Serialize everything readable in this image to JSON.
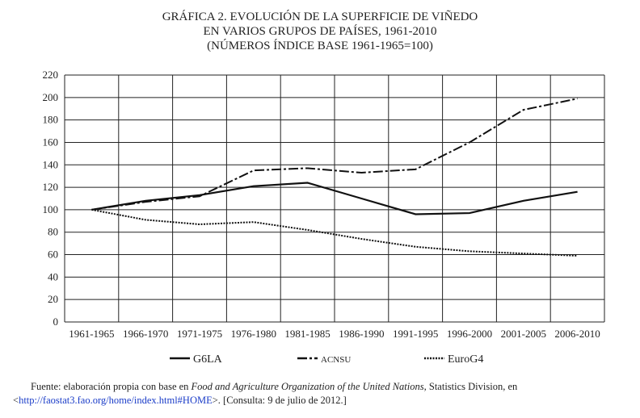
{
  "chart_data": {
    "type": "line",
    "title": [
      "GRÁFICA 2. EVOLUCIÓN DE LA SUPERFICIE DE VIÑEDO",
      "EN VARIOS GRUPOS DE PAÍSES, 1961-2010",
      "(NÚMEROS ÍNDICE BASE 1961-1965=100)"
    ],
    "categories": [
      "1961-1965",
      "1966-1970",
      "1971-1975",
      "1976-1980",
      "1981-1985",
      "1986-1990",
      "1991-1995",
      "1996-2000",
      "2001-2005",
      "2006-2010"
    ],
    "ylim": [
      0,
      220
    ],
    "yticks": [
      0,
      20,
      40,
      60,
      80,
      100,
      120,
      140,
      160,
      180,
      200,
      220
    ],
    "grid": true,
    "legend_placement": "bottom",
    "series": [
      {
        "name": "G6LA",
        "style": "solid",
        "values": [
          100,
          108,
          113,
          121,
          124,
          110,
          96,
          97,
          108,
          116
        ]
      },
      {
        "name": "ACNSU",
        "style": "dashdot",
        "values": [
          100,
          107,
          112,
          135,
          137,
          133,
          136,
          160,
          189,
          199
        ]
      },
      {
        "name": "EuroG4",
        "style": "dotted",
        "values": [
          100,
          91,
          87,
          89,
          82,
          74,
          67,
          63,
          61,
          59
        ]
      }
    ]
  },
  "source": {
    "prefix": "Fuente: elaboración propia con base en ",
    "italic": "Food and Agriculture Organization of the United Nations",
    "middle": ", Statistics Division, en <",
    "link": "http://faostat3.fao.org/home/index.html#HOME",
    "suffix": ">. [Consulta: 9 de julio de 2012.]"
  }
}
